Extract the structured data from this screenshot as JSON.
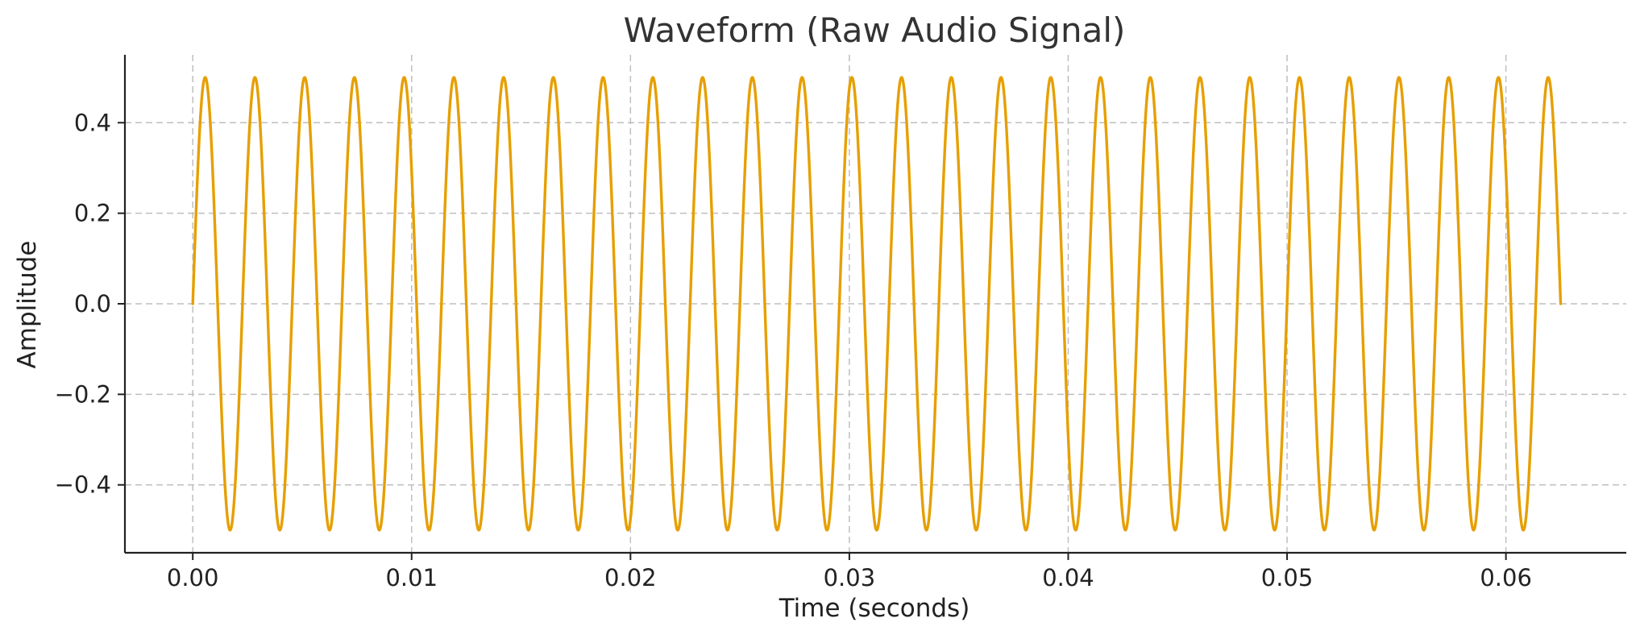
{
  "chart_data": {
    "type": "line",
    "title": "Waveform (Raw Audio Signal)",
    "xlabel": "Time (seconds)",
    "ylabel": "Amplitude",
    "xlim": [
      -0.0031,
      0.0655
    ],
    "ylim": [
      -0.55,
      0.55
    ],
    "x_ticks": [
      0.0,
      0.01,
      0.02,
      0.03,
      0.04,
      0.05,
      0.06
    ],
    "x_tick_labels": [
      "0.00",
      "0.01",
      "0.02",
      "0.03",
      "0.04",
      "0.05",
      "0.06"
    ],
    "y_ticks": [
      -0.4,
      -0.2,
      0.0,
      0.2,
      0.4
    ],
    "y_tick_labels": [
      "−0.4",
      "−0.2",
      "0.0",
      "0.2",
      "0.4"
    ],
    "grid": true,
    "series": [
      {
        "amplitude": 0.5,
        "frequency_hz": 440,
        "t_start": 0.0,
        "t_end": 0.0625,
        "color": "#E69F00",
        "function": "sine"
      }
    ]
  }
}
